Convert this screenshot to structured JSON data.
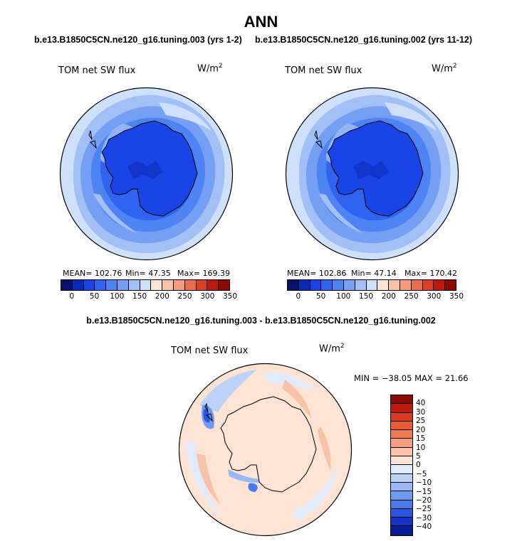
{
  "figure": {
    "title": "ANN",
    "run1_title": "b.e13.B1850C5CN.ne120_g16.tuning.003 (yrs 1-2)",
    "run2_title": "b.e13.B1850C5CN.ne120_g16.tuning.002 (yrs 11-12)",
    "diff_title": "b.e13.B1850C5CN.ne120_g16.tuning.003 - b.e13.B1850C5CN.ne120_g16.tuning.002"
  },
  "chart_data": [
    {
      "type": "heatmap",
      "title": "TOM net SW flux",
      "units": "W/m",
      "units_sup": "2",
      "projection": "south-polar-stereographic",
      "stats": {
        "mean": "102.76",
        "min": "47.35",
        "max": "169.39"
      },
      "stats_text": {
        "mean": "MEAN= 102.76",
        "min": "Min=  47.35",
        "max": "Max= 169.39"
      },
      "colorbar": {
        "orientation": "horizontal",
        "ticks": [
          "0",
          "50",
          "100",
          "150",
          "200",
          "250",
          "300",
          "350"
        ],
        "colors": [
          "#08116e",
          "#0b2ab8",
          "#1a45e6",
          "#2f63f0",
          "#4d83f2",
          "#759ff3",
          "#a2c0f6",
          "#cfe0fa",
          "#fde5d6",
          "#f7c3a8",
          "#f19d7e",
          "#e86d4f",
          "#d94127",
          "#bb1a0e",
          "#8c0a04"
        ]
      }
    },
    {
      "type": "heatmap",
      "title": "TOM net SW flux",
      "units": "W/m",
      "units_sup": "2",
      "projection": "south-polar-stereographic",
      "stats": {
        "mean": "102.86",
        "min": "47.14",
        "max": "170.42"
      },
      "stats_text": {
        "mean": "MEAN= 102.86",
        "min": "Min=  47.14",
        "max": "Max= 170.42"
      },
      "colorbar": {
        "orientation": "horizontal",
        "ticks": [
          "0",
          "50",
          "100",
          "150",
          "200",
          "250",
          "300",
          "350"
        ],
        "colors": [
          "#08116e",
          "#0b2ab8",
          "#1a45e6",
          "#2f63f0",
          "#4d83f2",
          "#759ff3",
          "#a2c0f6",
          "#cfe0fa",
          "#fde5d6",
          "#f7c3a8",
          "#f19d7e",
          "#e86d4f",
          "#d94127",
          "#bb1a0e",
          "#8c0a04"
        ]
      }
    },
    {
      "type": "heatmap",
      "title": "TOM net SW flux",
      "units": "W/m",
      "units_sup": "2",
      "projection": "south-polar-stereographic",
      "stats": {
        "min": "-38.05",
        "max": "21.66"
      },
      "stats_text": "MIN = −38.05 MAX =  21.66",
      "colorbar": {
        "orientation": "vertical",
        "ticks": [
          "40",
          "30",
          "25",
          "20",
          "15",
          "10",
          "5",
          "0",
          "−5",
          "−10",
          "−15",
          "−20",
          "−25",
          "−30",
          "−40"
        ],
        "colors": [
          "#8c0a04",
          "#bb1a0e",
          "#d63a22",
          "#e85a38",
          "#f27a53",
          "#f79e7f",
          "#fbc2a8",
          "#fde3d3",
          "#dfeafb",
          "#bcd3f7",
          "#98b9f3",
          "#6f9aef",
          "#4a79ea",
          "#2a55e2",
          "#1531c8",
          "#071d96"
        ]
      }
    }
  ]
}
